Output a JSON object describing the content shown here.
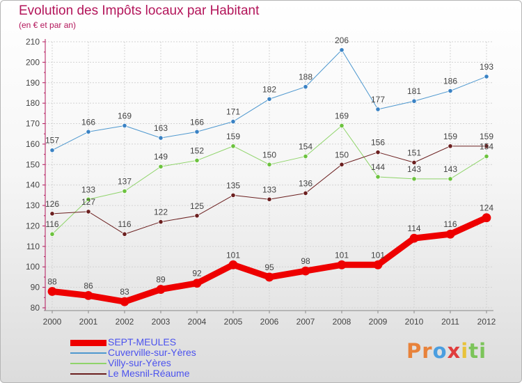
{
  "header": {
    "title": "Evolution des Impôts locaux par Habitant",
    "subtitle": "(en € et par an)"
  },
  "logo": {
    "letters": [
      "P",
      "r",
      "o",
      "x",
      "i",
      "t",
      "i"
    ],
    "colors": [
      "#e8823a",
      "#e8823a",
      "#4a9ee0",
      "#e03c3c",
      "#e8c23a",
      "#7cc45a",
      "#7cc45a"
    ]
  },
  "chart_data": {
    "type": "line",
    "x": [
      "2000",
      "2001",
      "2002",
      "2003",
      "2004",
      "2005",
      "2006",
      "2007",
      "2008",
      "2009",
      "2010",
      "2011",
      "2012"
    ],
    "ylim": [
      80,
      210
    ],
    "yticks": [
      80,
      90,
      100,
      110,
      120,
      130,
      140,
      150,
      160,
      170,
      180,
      190,
      200,
      210
    ],
    "grid": true,
    "legend_position": "bottom-left",
    "series": [
      {
        "name": "SEPT-MEULES",
        "color": "#ee0000",
        "width": 9,
        "marker": "#ee0000",
        "values": [
          88,
          86,
          83,
          89,
          92,
          101,
          95,
          98,
          101,
          101,
          114,
          116,
          124
        ]
      },
      {
        "name": "Cuverville-sur-Yères",
        "color": "#4e98cf",
        "width": 1,
        "marker": "#3a82c4",
        "values": [
          157,
          166,
          169,
          163,
          166,
          171,
          182,
          188,
          206,
          177,
          181,
          186,
          193
        ]
      },
      {
        "name": "Villy-sur-Yères",
        "color": "#8fd46a",
        "width": 1,
        "marker": "#6cc23e",
        "values": [
          116,
          133,
          137,
          149,
          152,
          159,
          150,
          154,
          169,
          144,
          143,
          143,
          154
        ]
      },
      {
        "name": "Le Mesnil-Réaume",
        "color": "#6b1f1f",
        "width": 1,
        "marker": "#6b1f1f",
        "values": [
          126,
          127,
          116,
          122,
          125,
          135,
          133,
          136,
          150,
          156,
          151,
          159,
          159
        ]
      }
    ]
  }
}
